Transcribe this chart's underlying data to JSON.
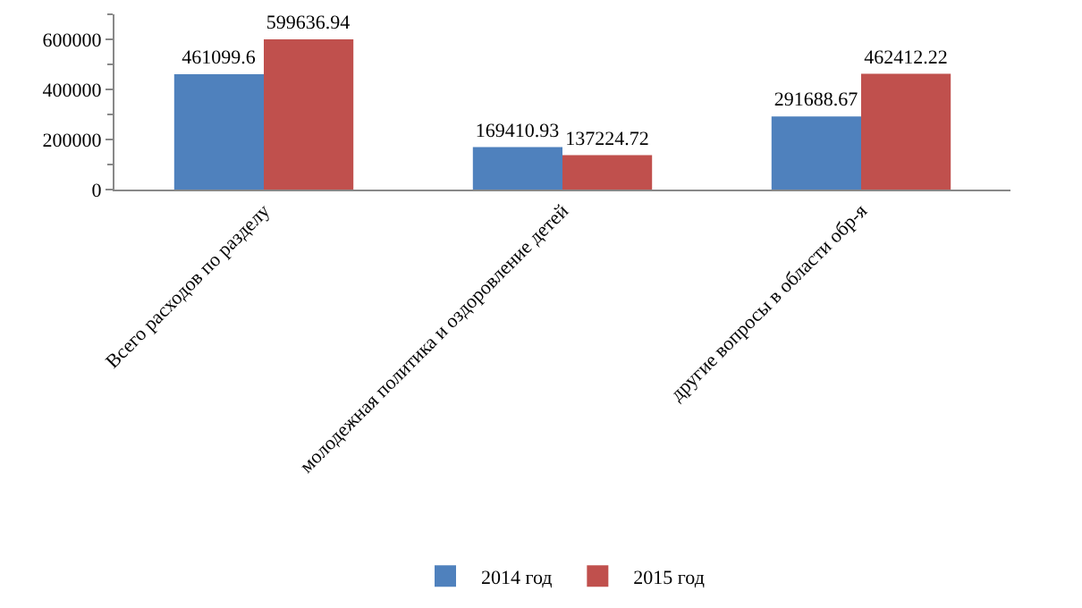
{
  "chart_data": {
    "type": "bar",
    "categories": [
      "Всего расходов по разделу",
      "молодежная политика и оздоровление детей",
      "другие вопросы в области обр-я"
    ],
    "series": [
      {
        "name": "2014 год",
        "color": "#4f81bd",
        "values": [
          461099.6,
          169410.93,
          291688.67
        ]
      },
      {
        "name": "2015 год",
        "color": "#c0504d",
        "values": [
          599636.94,
          137224.72,
          462412.22
        ]
      }
    ],
    "ylim": [
      0,
      700000
    ],
    "yticks": [
      0,
      200000,
      400000,
      600000
    ],
    "grid": false,
    "legend": "bottom",
    "data_labels": true
  }
}
